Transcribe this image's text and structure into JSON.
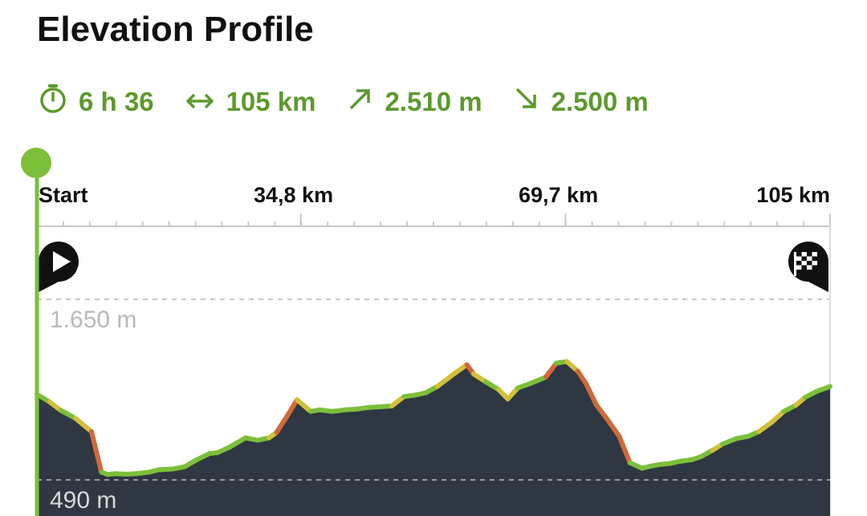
{
  "header": {
    "title": "Elevation Profile"
  },
  "stats": {
    "duration": "6 h 36",
    "distance": "105 km",
    "ascent": "2.510 m",
    "descent": "2.500 m"
  },
  "colors": {
    "accent": "#5c9a2e",
    "fill": "#2f3742",
    "line_green": "#7cbf3a",
    "line_yellow": "#d2c03a",
    "line_red": "#cf6a3a",
    "axis": "#c8c8c8"
  },
  "icons": [
    "stopwatch-icon",
    "distance-arrows-icon",
    "ascent-arrow-icon",
    "descent-arrow-icon",
    "start-play-marker-icon",
    "finish-flag-marker-icon"
  ],
  "chart_data": {
    "type": "area",
    "title": "Elevation Profile",
    "xlabel": "",
    "ylabel": "",
    "x_ticks": [
      {
        "value": 0,
        "label": "Start"
      },
      {
        "value": 34.8,
        "label": "34,8 km"
      },
      {
        "value": 69.7,
        "label": "69,7 km"
      },
      {
        "value": 104.6,
        "label": "105 km"
      }
    ],
    "y_ticks": [
      {
        "value": 1650,
        "label": "1.650 m"
      },
      {
        "value": 490,
        "label": "490 m"
      }
    ],
    "xlim": [
      0,
      104.6
    ],
    "ylim": [
      490,
      1650
    ],
    "grid": "dashed horizontal lines at y ticks",
    "series": [
      {
        "x": [
          0,
          1.7,
          3.2,
          5.1,
          7.2,
          8.5,
          9.3,
          10.3,
          11.7,
          13.1,
          14.8,
          16.1,
          17.9,
          19.5,
          21.1,
          22.8,
          23.8,
          25.4,
          27.5,
          29.1,
          30.6,
          31.6,
          33.0,
          34.3,
          36.1,
          37.3,
          38.9,
          39.9,
          40.6,
          42.2,
          43.7,
          45.3,
          46.8,
          48.4,
          49.9,
          51.3,
          52.8,
          55.1,
          56.7,
          57.6,
          59.2,
          60.9,
          62.1,
          63.4,
          65.1,
          67.1,
          68.5,
          69.9,
          71.3,
          72.4,
          73.8,
          75.2,
          76.8,
          78.2,
          79.8,
          81.1,
          82.3,
          83.4,
          84.9,
          86.4,
          87.6,
          89.1,
          90.4,
          92.2,
          93.8,
          95.2,
          96.9,
          98.5,
          100.1,
          101.3,
          102.9,
          104.6
        ],
        "y": [
          1040,
          990,
          935,
          885,
          800,
          540,
          525,
          530,
          527,
          530,
          540,
          555,
          560,
          575,
          620,
          660,
          665,
          700,
          760,
          745,
          760,
          795,
          900,
          1005,
          930,
          940,
          930,
          935,
          940,
          945,
          955,
          960,
          965,
          1025,
          1035,
          1050,
          1090,
          1175,
          1230,
          1170,
          1120,
          1070,
          1010,
          1080,
          1110,
          1150,
          1240,
          1250,
          1190,
          1110,
          970,
          880,
          770,
          600,
          565,
          580,
          590,
          595,
          610,
          620,
          640,
          680,
          720,
          755,
          770,
          800,
          860,
          930,
          970,
          1020,
          1060,
          1090
        ]
      }
    ]
  }
}
